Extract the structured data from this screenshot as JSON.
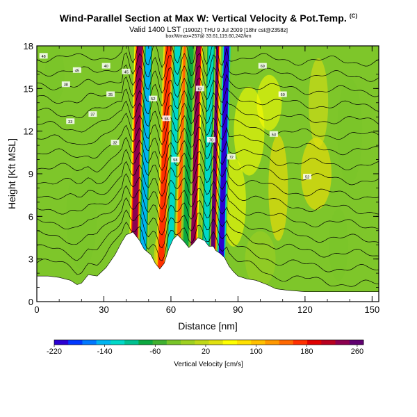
{
  "header": {
    "title": "Wind-Parallel Section at Max W: Vertical Velocity & Pot.Temp.",
    "title_note": "(C)",
    "valid_main": "Valid 1400 LST",
    "valid_detail": "(1900Z) THU 9 Jul 2009 [18hr cst@2358z]",
    "subtitle": "box/Wmax=257@ 33.61,119.60,242/km"
  },
  "chart_data": {
    "type": "heatmap",
    "xlabel": "Distance [nm]",
    "ylabel": "Height [Kft MSL]",
    "xlim": [
      0,
      153
    ],
    "ylim": [
      0,
      18
    ],
    "xticks": [
      "0",
      "30",
      "60",
      "90",
      "120",
      "150"
    ],
    "yticks": [
      "0",
      "3",
      "6",
      "9",
      "12",
      "15",
      "18"
    ],
    "terrain": [
      [
        0,
        1.8
      ],
      [
        5,
        1.8
      ],
      [
        10,
        1.7
      ],
      [
        15,
        1.5
      ],
      [
        18,
        1.2
      ],
      [
        20,
        1.3
      ],
      [
        23,
        1.9
      ],
      [
        27,
        1.8
      ],
      [
        31,
        2.4
      ],
      [
        35,
        3.3
      ],
      [
        38,
        4.2
      ],
      [
        40,
        4.7
      ],
      [
        43,
        4.9
      ],
      [
        46,
        4.3
      ],
      [
        48,
        3.7
      ],
      [
        51,
        3.3
      ],
      [
        53,
        2.7
      ],
      [
        55,
        2.3
      ],
      [
        57,
        2.7
      ],
      [
        59,
        3.7
      ],
      [
        61,
        4.4
      ],
      [
        63,
        4.7
      ],
      [
        66,
        4.2
      ],
      [
        68,
        3.8
      ],
      [
        70,
        4.1
      ],
      [
        72,
        4.5
      ],
      [
        75,
        4.3
      ],
      [
        77,
        3.9
      ],
      [
        79,
        3.9
      ],
      [
        80,
        3.6
      ],
      [
        82,
        3.4
      ],
      [
        84,
        3.1
      ],
      [
        86,
        2.5
      ],
      [
        88,
        2.1
      ],
      [
        90,
        1.8
      ],
      [
        94,
        1.6
      ],
      [
        98,
        1.5
      ],
      [
        103,
        1.2
      ],
      [
        107,
        0.9
      ],
      [
        112,
        0.8
      ],
      [
        120,
        0.7
      ],
      [
        130,
        0.7
      ],
      [
        140,
        0.7
      ],
      [
        150,
        0.7
      ],
      [
        153,
        0.7
      ]
    ],
    "updraft_bands": [
      {
        "x": 43,
        "w": 230,
        "dx": 3
      },
      {
        "x": 55,
        "w": 180,
        "dx": 4
      },
      {
        "x": 63,
        "w": 150,
        "dx": 4
      },
      {
        "x": 69,
        "w": 240,
        "dx": 3
      },
      {
        "x": 78,
        "w": 257,
        "dx": 2
      }
    ],
    "downdraft_bands": [
      {
        "x": 47,
        "w": -150,
        "dx": 3
      },
      {
        "x": 59,
        "w": -110,
        "dx": 4
      },
      {
        "x": 66,
        "w": -80,
        "dx": 3
      },
      {
        "x": 75,
        "w": -130,
        "dx": 3
      },
      {
        "x": 82,
        "w": -200,
        "dx": 3
      }
    ],
    "theta_contours": {
      "from": 40,
      "to": 1.0,
      "count": 16
    },
    "contour_labels": [
      "48",
      "45",
      "38",
      "40",
      "37",
      "35",
      "33",
      "32",
      "45",
      "52",
      "55",
      "58",
      "62",
      "70",
      "72",
      "69",
      "60",
      "53",
      "52"
    ],
    "colorbar": {
      "label": "Vertical Velocity [cm/s]",
      "min": -220,
      "max": 270,
      "ticks": [
        "-220",
        "-140",
        "-60",
        "20",
        "100",
        "180",
        "260"
      ],
      "colors": [
        "#2b00d2",
        "#0038ff",
        "#0078ff",
        "#00b4f0",
        "#00d8c8",
        "#00c090",
        "#0ca840",
        "#40b030",
        "#78c428",
        "#9ed020",
        "#c0d818",
        "#e0e010",
        "#ffff00",
        "#ffe000",
        "#ffc000",
        "#ff9800",
        "#ff6800",
        "#ff3000",
        "#e00000",
        "#b80020",
        "#8c0050",
        "#600070"
      ]
    }
  }
}
